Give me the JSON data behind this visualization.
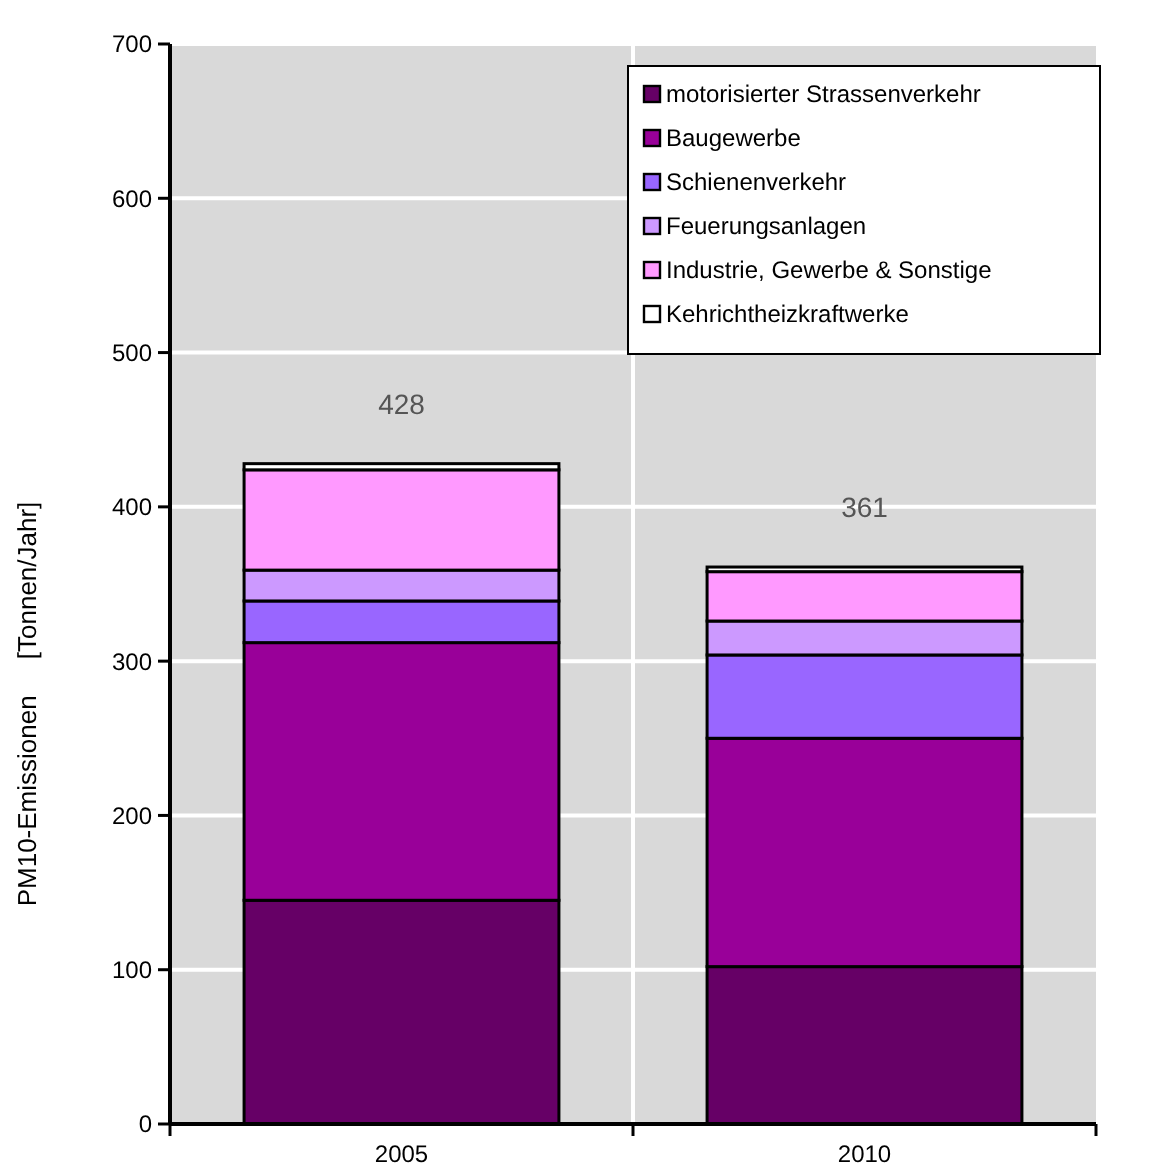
{
  "chart_data": {
    "type": "bar",
    "stacked": true,
    "categories": [
      "2005",
      "2010"
    ],
    "ylabel": "PM10-Emissionen     [Tonnen/Jahr]",
    "ylim": [
      0,
      700
    ],
    "yticks": [
      0,
      100,
      200,
      300,
      400,
      500,
      600,
      700
    ],
    "grid": true,
    "legend": "top right",
    "totals": [
      "428",
      "361"
    ],
    "series": [
      {
        "name": "motorisierter Strassenverkehr",
        "color": "#660066",
        "values": [
          145,
          102
        ]
      },
      {
        "name": "Baugewerbe",
        "color": "#990099",
        "values": [
          167,
          148
        ]
      },
      {
        "name": "Schienenverkehr",
        "color": "#9966ff",
        "values": [
          27,
          54
        ]
      },
      {
        "name": "Feuerungsanlagen",
        "color": "#cc99ff",
        "values": [
          20,
          22
        ]
      },
      {
        "name": "Industrie, Gewerbe & Sonstige",
        "color": "#ff99ff",
        "values": [
          65,
          32
        ]
      },
      {
        "name": "Kehrichtheizkraftwerke",
        "color": "#ffffff",
        "values": [
          4,
          3
        ]
      }
    ]
  }
}
